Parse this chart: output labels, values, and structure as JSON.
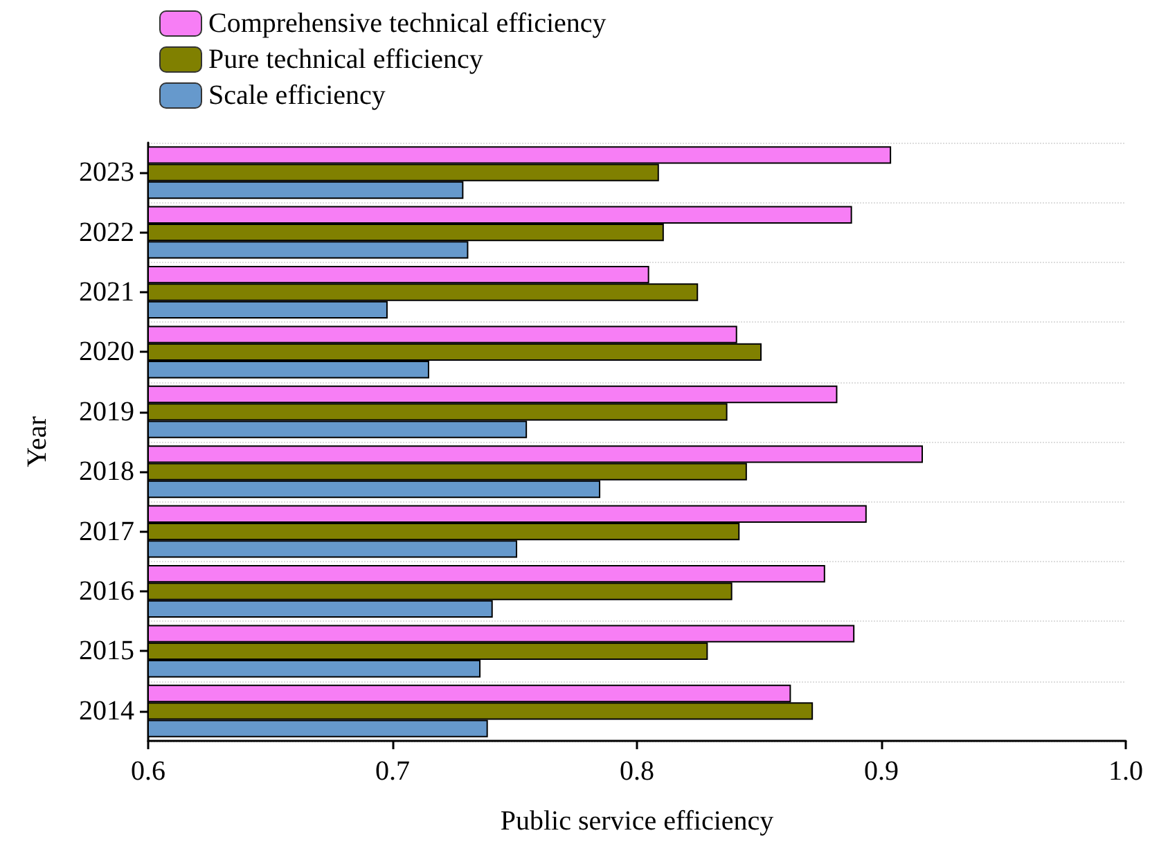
{
  "chart_data": {
    "type": "bar",
    "orientation": "horizontal",
    "xlabel": "Public service efficiency",
    "ylabel": "Year",
    "categories": [
      "2023",
      "2022",
      "2021",
      "2020",
      "2019",
      "2018",
      "2017",
      "2016",
      "2015",
      "2014"
    ],
    "series": [
      {
        "name": "Comprehensive technical efficiency",
        "color": "#f77ef5",
        "values": [
          0.904,
          0.888,
          0.805,
          0.841,
          0.882,
          0.917,
          0.894,
          0.877,
          0.889,
          0.863
        ]
      },
      {
        "name": "Pure technical efficiency",
        "color": "#808000",
        "values": [
          0.809,
          0.811,
          0.825,
          0.851,
          0.837,
          0.845,
          0.842,
          0.839,
          0.829,
          0.872
        ]
      },
      {
        "name": "Scale efficiency",
        "color": "#6699cc",
        "values": [
          0.729,
          0.731,
          0.698,
          0.715,
          0.755,
          0.785,
          0.751,
          0.741,
          0.736,
          0.739
        ]
      }
    ],
    "xlim": [
      0.6,
      1.0
    ],
    "xticks": [
      0.6,
      0.7,
      0.8,
      0.9,
      {
        "value": 1,
        "label": "1.0"
      }
    ],
    "grid": "y",
    "legend": "top left"
  }
}
